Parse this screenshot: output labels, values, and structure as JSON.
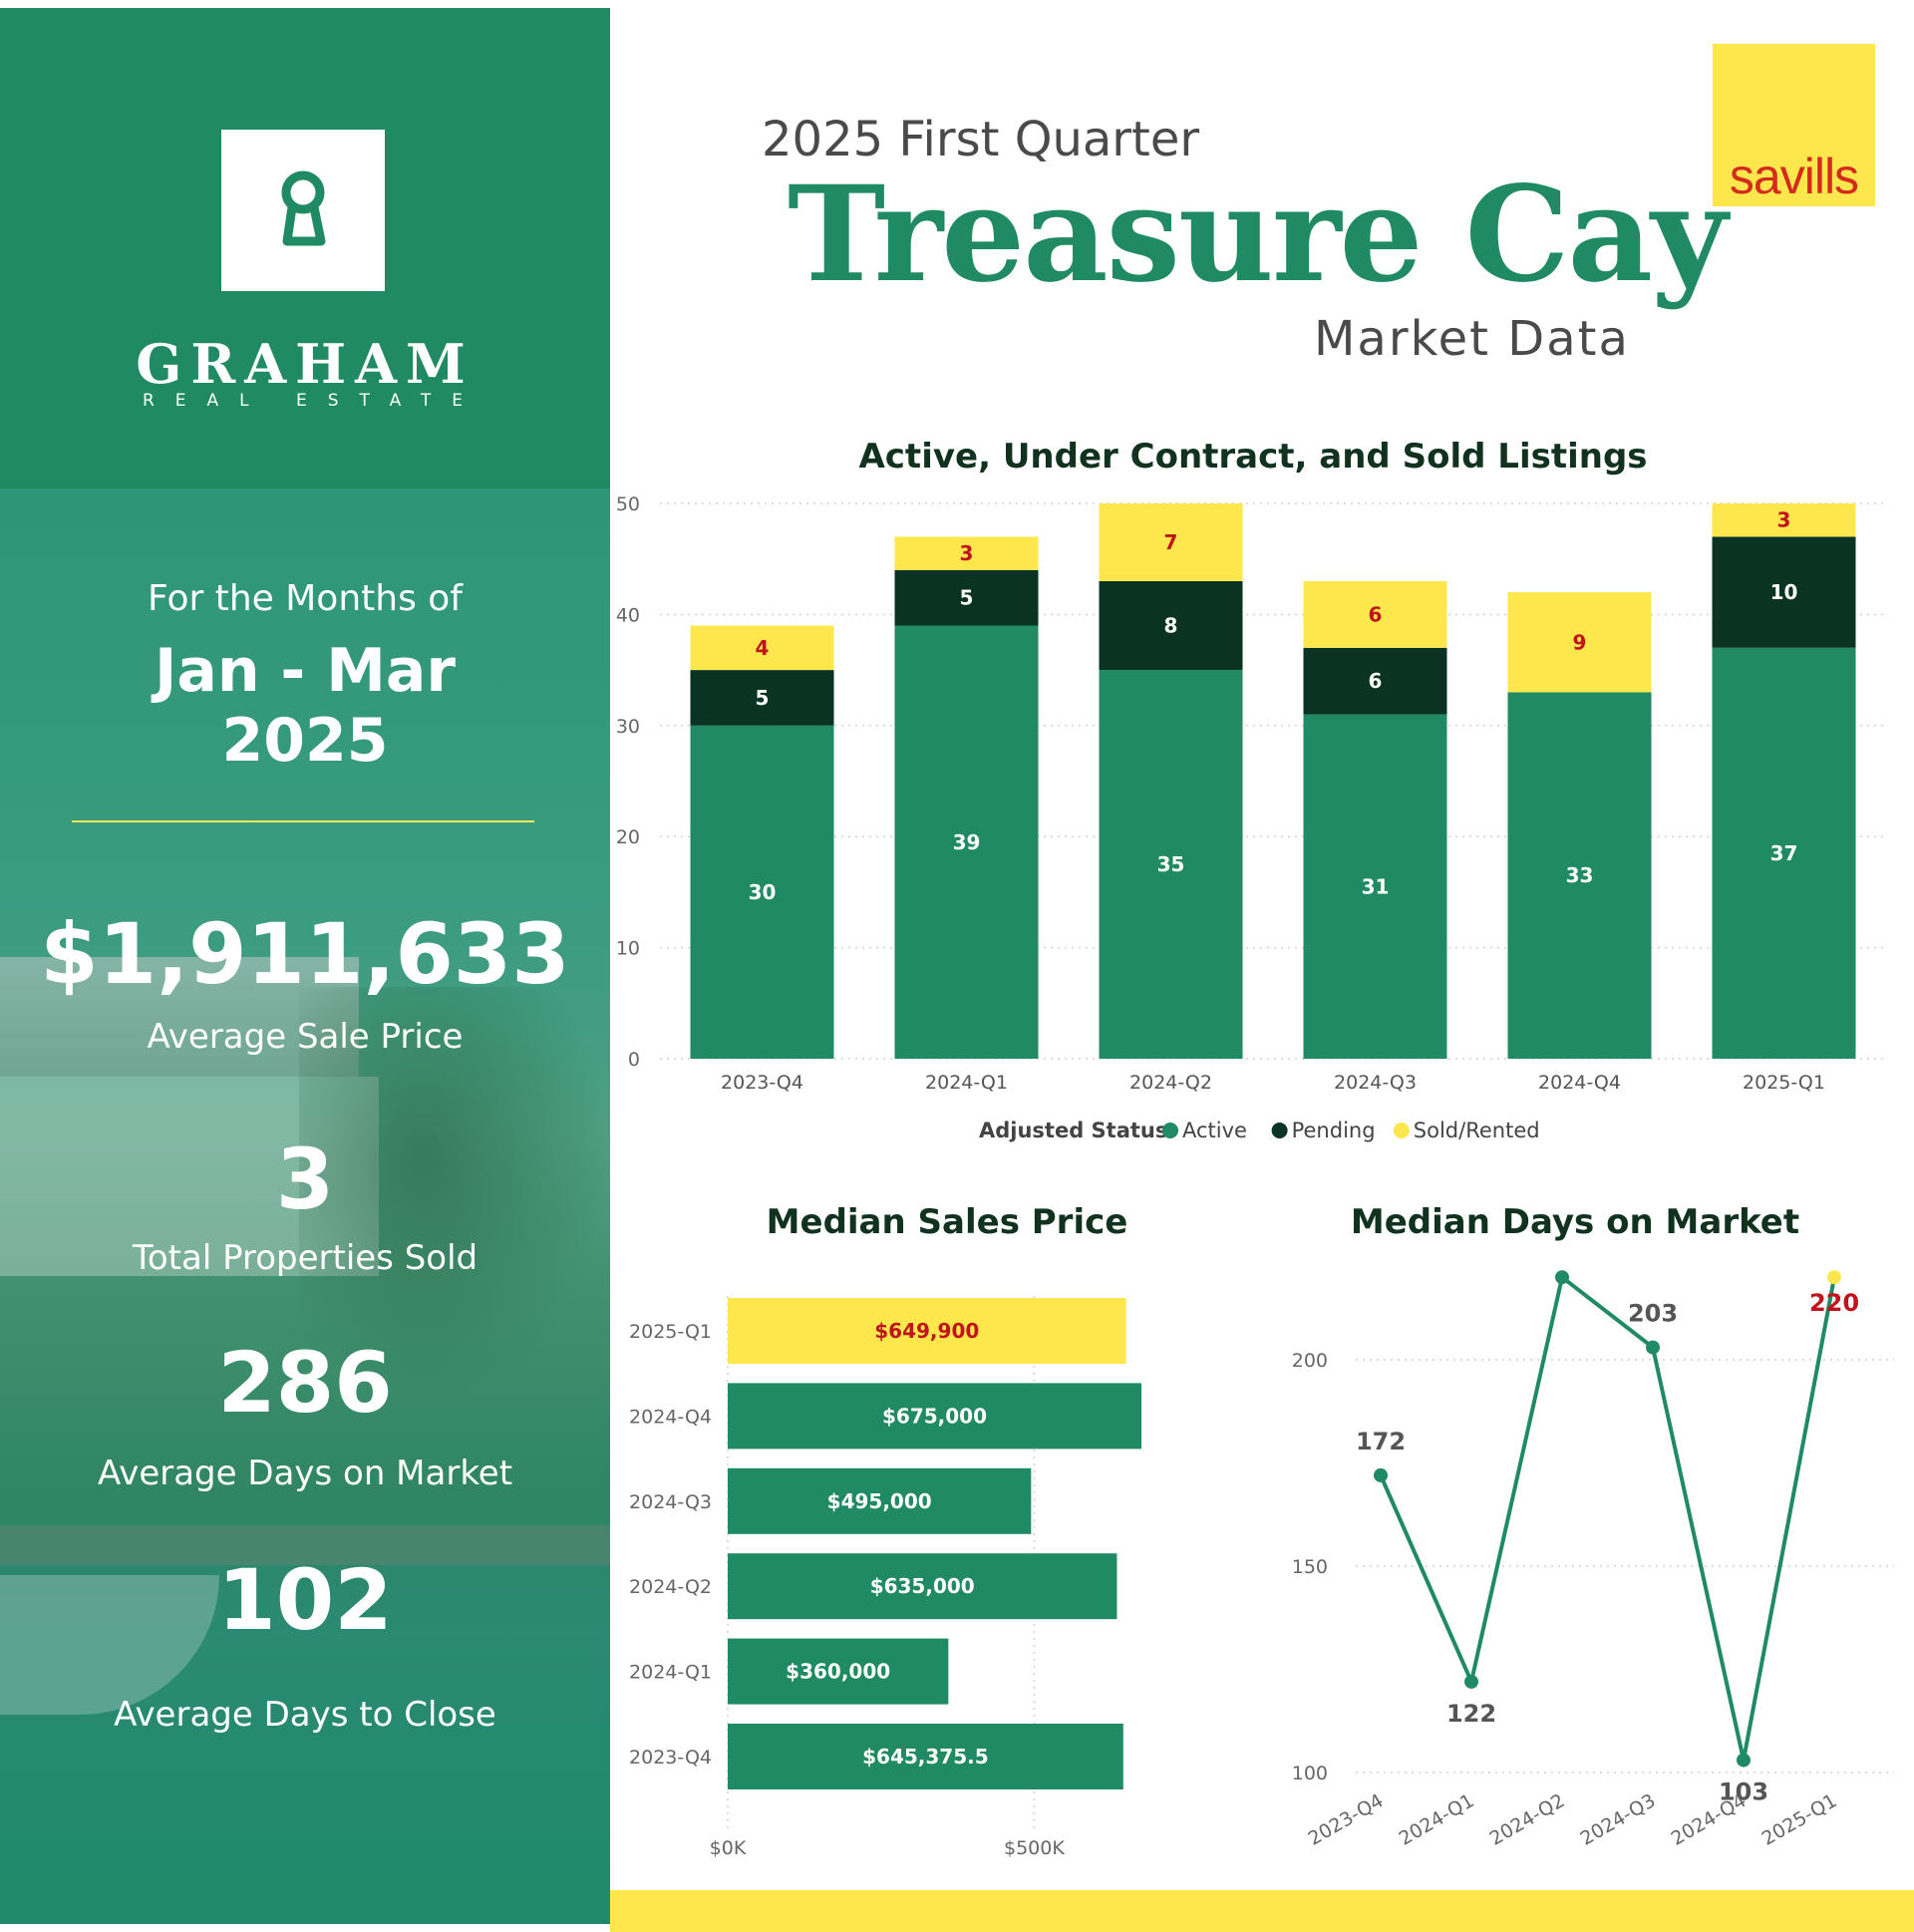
{
  "brand": {
    "name": "GRAHAM",
    "tagline": "REAL ESTATE",
    "partner": "savills",
    "colors": {
      "green": "#1f8a64",
      "dark": "#0b3324",
      "yellow": "#fde74c",
      "red": "#c0131b"
    }
  },
  "header": {
    "subtitle": "2025 First Quarter",
    "title": "Treasure Cay",
    "suffix": "Market Data"
  },
  "period": {
    "intro": "For the Months of",
    "range": "Jan - Mar",
    "year": "2025"
  },
  "stats": {
    "avg_sale_price": "$1,911,633",
    "avg_sale_price_label": "Average Sale Price",
    "total_sold": "3",
    "total_sold_label": "Total Properties Sold",
    "avg_dom": "286",
    "avg_dom_label": "Average Days on Market",
    "avg_close": "102",
    "avg_close_label": "Average Days to Close"
  },
  "chart_data": [
    {
      "type": "bar",
      "stacked": true,
      "title": "Active, Under Contract, and Sold Listings",
      "categories": [
        "2023-Q4",
        "2024-Q1",
        "2024-Q2",
        "2024-Q3",
        "2024-Q4",
        "2025-Q1"
      ],
      "series": [
        {
          "name": "Active",
          "color": "#1f8a64",
          "values": [
            30,
            39,
            35,
            31,
            33,
            37
          ]
        },
        {
          "name": "Pending",
          "color": "#0b3324",
          "values": [
            5,
            5,
            8,
            6,
            0,
            10
          ]
        },
        {
          "name": "Sold/Rented",
          "color": "#fde74c",
          "values": [
            4,
            3,
            7,
            6,
            9,
            3
          ]
        }
      ],
      "ylim": [
        0,
        50
      ],
      "yticks": [
        0,
        10,
        20,
        30,
        40,
        50
      ],
      "legend_title": "Adjusted Status",
      "legend_position": "bottom",
      "grid": true
    },
    {
      "type": "bar",
      "orientation": "horizontal",
      "title": "Median Sales Price",
      "categories": [
        "2025-Q1",
        "2024-Q4",
        "2024-Q3",
        "2024-Q2",
        "2024-Q1",
        "2023-Q4"
      ],
      "values": [
        649900,
        675000,
        495000,
        635000,
        360000,
        645375.5
      ],
      "labels": [
        "$649,900",
        "$675,000",
        "$495,000",
        "$635,000",
        "$360,000",
        "$645,375.5"
      ],
      "highlight": "2025-Q1",
      "xticks": [
        0,
        500000
      ],
      "xtick_labels": [
        "$0K",
        "$500K"
      ],
      "xlim": [
        0,
        675000
      ]
    },
    {
      "type": "line",
      "title": "Median Days on Market",
      "x": [
        "2023-Q4",
        "2024-Q1",
        "2024-Q2",
        "2024-Q3",
        "2024-Q4",
        "2025-Q1"
      ],
      "values": [
        172,
        122,
        220,
        203,
        103,
        220
      ],
      "yticks": [
        100,
        150,
        200
      ],
      "ylim": [
        100,
        220
      ],
      "highlight": "2025-Q1",
      "grid": true
    }
  ]
}
